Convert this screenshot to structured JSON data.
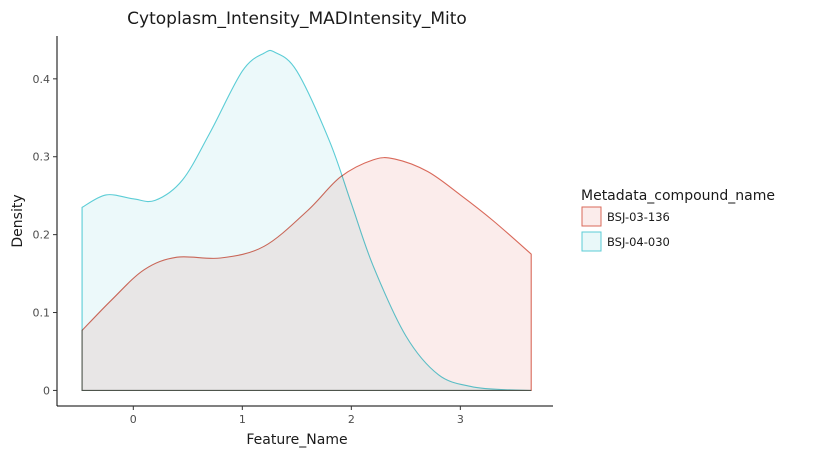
{
  "chart_data": {
    "type": "area",
    "title": "Cytoplasm_Intensity_MADIntensity_Mito",
    "xlabel": "Feature_Name",
    "ylabel": "Density",
    "xlim": [
      -0.7,
      3.85
    ],
    "ylim": [
      -0.02,
      0.455
    ],
    "xticks": [
      0,
      1,
      2,
      3
    ],
    "yticks": [
      0,
      0.1,
      0.2,
      0.3,
      0.4
    ],
    "xtick_labels": [
      "0",
      "1",
      "2",
      "3"
    ],
    "ytick_labels": [
      "0",
      "0.1",
      "0.2",
      "0.3",
      "0.4"
    ],
    "grid": false,
    "legend": {
      "title": "Metadata_compound_name",
      "position": "right"
    },
    "series": [
      {
        "name": "BSJ-03-136",
        "color": "#d9695a",
        "fill": "#fbeceb",
        "x": [
          -0.47,
          -0.2,
          0.1,
          0.4,
          0.8,
          1.2,
          1.6,
          1.9,
          2.2,
          2.4,
          2.7,
          3.0,
          3.3,
          3.65
        ],
        "y": [
          0.077,
          0.116,
          0.155,
          0.171,
          0.17,
          0.185,
          0.231,
          0.274,
          0.296,
          0.297,
          0.281,
          0.251,
          0.218,
          0.175
        ]
      },
      {
        "name": "BSJ-04-030",
        "color": "#5ccdd6",
        "fill": "#e9f8f9",
        "x": [
          -0.47,
          -0.25,
          0.0,
          0.2,
          0.45,
          0.7,
          1.0,
          1.2,
          1.3,
          1.5,
          1.8,
          2.0,
          2.2,
          2.5,
          2.8,
          3.1,
          3.4,
          3.65
        ],
        "y": [
          0.235,
          0.251,
          0.246,
          0.244,
          0.27,
          0.33,
          0.41,
          0.433,
          0.434,
          0.41,
          0.32,
          0.24,
          0.16,
          0.07,
          0.02,
          0.005,
          0.001,
          0.0
        ]
      }
    ]
  }
}
